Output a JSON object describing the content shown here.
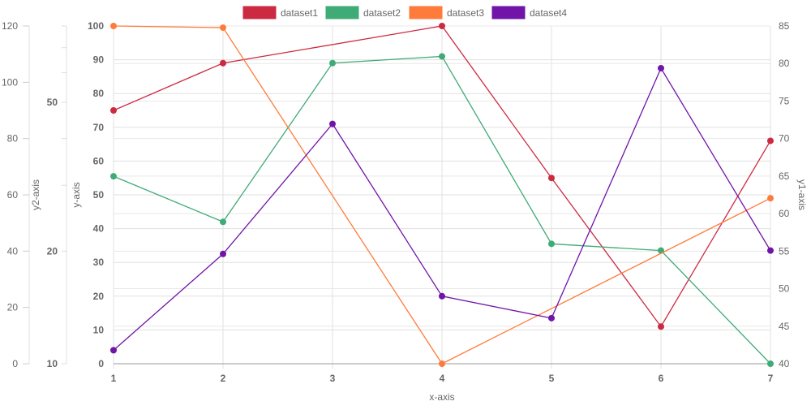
{
  "chart_data": {
    "type": "line",
    "x": [
      1,
      2,
      3,
      4,
      5,
      6,
      7
    ],
    "xlabel": "x-axis",
    "axes": {
      "y": {
        "label": "y-axis",
        "min": 0,
        "max": 100,
        "ticks": [
          0,
          10,
          20,
          30,
          40,
          50,
          60,
          70,
          80,
          90,
          100
        ]
      },
      "y1": {
        "label": "y1-axis",
        "min": 40,
        "max": 85,
        "ticks": [
          40,
          45,
          50,
          55,
          60,
          65,
          70,
          75,
          80,
          85
        ]
      },
      "y2": {
        "label": "y2-axis",
        "min": 0,
        "max": 120,
        "ticks": [
          0,
          20,
          40,
          60,
          80,
          100,
          120
        ]
      },
      "y3": {
        "label": "",
        "scale": "log",
        "min": 10,
        "ticks": [
          10,
          20,
          50
        ]
      }
    },
    "grid": true,
    "legend_position": "top",
    "series": [
      {
        "name": "dataset1",
        "color": "#cc2a41",
        "values": [
          75,
          89,
          100,
          55,
          11,
          66
        ],
        "x": [
          1,
          2,
          4,
          5,
          6,
          7
        ],
        "values_note": ""
      },
      {
        "name": "dataset2",
        "color": "#3fab77",
        "values": [
          55.5,
          42,
          89,
          91,
          35.5,
          33.5,
          0
        ]
      },
      {
        "name": "dataset3",
        "color": "#ff7b3b",
        "values": [
          100,
          99.5,
          null,
          0,
          null,
          null,
          49
        ]
      },
      {
        "name": "dataset4",
        "color": "#7114a8",
        "values": [
          4,
          32.5,
          71,
          20,
          13.5,
          87.5,
          33.5
        ]
      }
    ]
  }
}
